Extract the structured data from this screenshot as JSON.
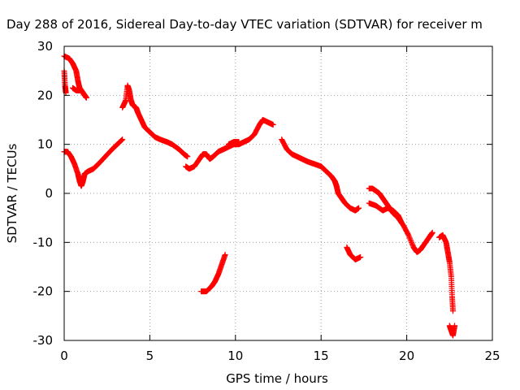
{
  "chart_data": {
    "type": "scatter",
    "title": "Day 288 of 2016, Sidereal Day-to-day VTEC variation (SDTVAR) for receiver m",
    "xlabel": "GPS time / hours",
    "ylabel": "SDTVAR / TECUs",
    "xlim": [
      0,
      25
    ],
    "ylim": [
      -30,
      30
    ],
    "xticks": [
      "0",
      "5",
      "10",
      "15",
      "20",
      "25"
    ],
    "yticks": [
      "-30",
      "-20",
      "-10",
      "0",
      "10",
      "20",
      "30"
    ],
    "grid": true,
    "marker_color": "#ff0000",
    "marker": "plus",
    "series": [
      {
        "segments": [
          [
            [
              0.0,
              25.0
            ],
            [
              0.05,
              22.0
            ],
            [
              0.1,
              20.5
            ]
          ],
          [
            [
              0.0,
              28.0
            ],
            [
              0.3,
              27.5
            ],
            [
              0.5,
              26.5
            ],
            [
              0.7,
              25.0
            ],
            [
              0.8,
              23.0
            ],
            [
              0.9,
              21.5
            ],
            [
              1.0,
              21.0
            ],
            [
              1.1,
              20.5
            ],
            [
              1.2,
              20.0
            ],
            [
              1.3,
              19.5
            ]
          ],
          [
            [
              0.5,
              21.5
            ],
            [
              0.7,
              21.0
            ],
            [
              0.9,
              21.0
            ]
          ],
          [
            [
              0.0,
              8.5
            ],
            [
              0.2,
              8.5
            ],
            [
              0.4,
              7.5
            ],
            [
              0.6,
              6.0
            ],
            [
              0.8,
              4.0
            ],
            [
              0.9,
              2.5
            ],
            [
              1.0,
              1.5
            ],
            [
              1.1,
              2.5
            ],
            [
              1.2,
              4.0
            ],
            [
              1.4,
              4.5
            ],
            [
              1.7,
              5.0
            ],
            [
              2.0,
              6.0
            ],
            [
              2.4,
              7.5
            ],
            [
              2.8,
              9.0
            ],
            [
              3.1,
              10.0
            ],
            [
              3.4,
              11.0
            ]
          ],
          [
            [
              3.4,
              17.5
            ],
            [
              3.6,
              19.0
            ],
            [
              3.7,
              22.0
            ],
            [
              3.8,
              21.0
            ],
            [
              3.9,
              19.0
            ],
            [
              4.0,
              18.0
            ],
            [
              4.2,
              17.5
            ],
            [
              4.3,
              16.5
            ],
            [
              4.5,
              15.0
            ],
            [
              4.7,
              13.5
            ],
            [
              5.0,
              12.5
            ],
            [
              5.3,
              11.5
            ],
            [
              5.6,
              11.0
            ],
            [
              6.0,
              10.5
            ],
            [
              6.3,
              10.0
            ],
            [
              6.7,
              9.0
            ],
            [
              7.0,
              8.0
            ],
            [
              7.2,
              7.5
            ]
          ],
          [
            [
              7.1,
              5.5
            ],
            [
              7.3,
              5.0
            ],
            [
              7.6,
              5.5
            ],
            [
              7.9,
              7.0
            ],
            [
              8.1,
              8.0
            ],
            [
              8.3,
              8.0
            ],
            [
              8.5,
              7.0
            ],
            [
              8.7,
              7.5
            ],
            [
              9.0,
              8.5
            ],
            [
              9.3,
              9.0
            ],
            [
              9.6,
              9.5
            ],
            [
              9.9,
              10.0
            ],
            [
              10.2,
              10.0
            ],
            [
              10.5,
              10.5
            ],
            [
              10.8,
              11.0
            ],
            [
              11.1,
              12.0
            ],
            [
              11.4,
              14.0
            ],
            [
              11.6,
              15.0
            ],
            [
              11.9,
              14.5
            ],
            [
              12.2,
              14.0
            ]
          ],
          [
            [
              9.6,
              10.0
            ],
            [
              9.9,
              10.5
            ],
            [
              10.2,
              10.5
            ]
          ],
          [
            [
              8.0,
              -20.0
            ],
            [
              8.3,
              -20.0
            ],
            [
              8.6,
              -19.0
            ],
            [
              8.8,
              -18.0
            ],
            [
              9.0,
              -16.5
            ],
            [
              9.2,
              -14.5
            ],
            [
              9.4,
              -12.5
            ]
          ],
          [
            [
              12.7,
              11.0
            ],
            [
              13.0,
              9.0
            ],
            [
              13.3,
              8.0
            ],
            [
              13.6,
              7.5
            ],
            [
              13.9,
              7.0
            ],
            [
              14.2,
              6.5
            ],
            [
              14.6,
              6.0
            ],
            [
              15.0,
              5.5
            ],
            [
              15.3,
              4.5
            ],
            [
              15.6,
              3.5
            ],
            [
              15.8,
              2.5
            ],
            [
              15.9,
              1.5
            ],
            [
              16.0,
              0.0
            ],
            [
              16.2,
              -1.0
            ],
            [
              16.4,
              -2.0
            ],
            [
              16.7,
              -3.0
            ],
            [
              17.0,
              -3.5
            ],
            [
              17.2,
              -3.0
            ]
          ],
          [
            [
              16.5,
              -11.0
            ],
            [
              16.7,
              -12.5
            ],
            [
              17.0,
              -13.5
            ],
            [
              17.3,
              -13.0
            ]
          ],
          [
            [
              17.8,
              1.0
            ],
            [
              18.0,
              1.0
            ],
            [
              18.2,
              0.5
            ],
            [
              18.4,
              0.0
            ],
            [
              18.6,
              -1.0
            ],
            [
              18.8,
              -2.0
            ],
            [
              19.0,
              -3.0
            ],
            [
              19.2,
              -4.0
            ],
            [
              19.5,
              -5.0
            ],
            [
              19.8,
              -6.5
            ],
            [
              20.1,
              -8.5
            ],
            [
              20.4,
              -11.0
            ],
            [
              20.6,
              -12.0
            ],
            [
              20.8,
              -11.5
            ],
            [
              21.0,
              -10.5
            ],
            [
              21.3,
              -9.0
            ],
            [
              21.5,
              -8.0
            ]
          ],
          [
            [
              17.8,
              -2.0
            ],
            [
              18.2,
              -2.5
            ],
            [
              18.6,
              -3.5
            ],
            [
              18.9,
              -3.0
            ],
            [
              19.2,
              -3.5
            ],
            [
              19.5,
              -4.5
            ],
            [
              19.7,
              -6.0
            ]
          ],
          [
            [
              21.9,
              -9.0
            ],
            [
              22.1,
              -8.5
            ],
            [
              22.3,
              -10.0
            ],
            [
              22.4,
              -12.0
            ],
            [
              22.5,
              -14.0
            ],
            [
              22.6,
              -17.0
            ],
            [
              22.65,
              -21.0
            ],
            [
              22.7,
              -24.0
            ]
          ],
          [
            [
              22.5,
              -27.0
            ],
            [
              22.6,
              -28.0
            ],
            [
              22.7,
              -29.0
            ],
            [
              22.8,
              -27.0
            ]
          ]
        ]
      }
    ]
  }
}
